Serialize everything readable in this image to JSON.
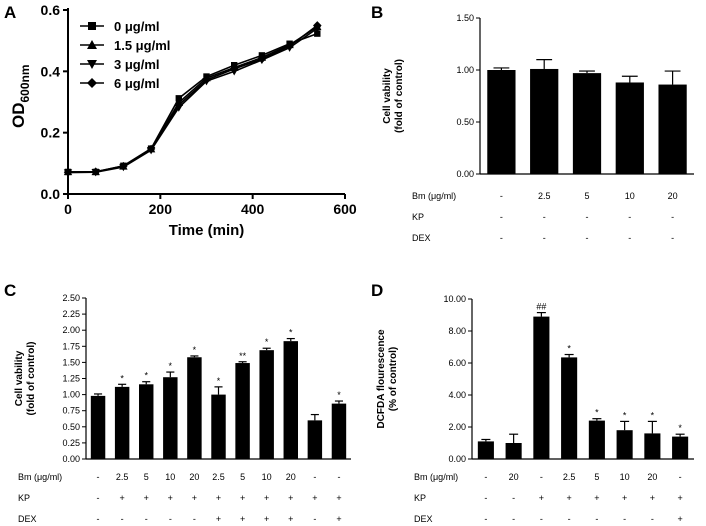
{
  "chart_data": [
    {
      "panel": "A",
      "type": "line",
      "ylabel_main": "OD",
      "ylabel_sub": "600nm",
      "xlabel": "Time (min)",
      "xlim": [
        0,
        600
      ],
      "ylim": [
        0,
        0.6
      ],
      "xticks": [
        0,
        200,
        400,
        600
      ],
      "yticks": [
        0.0,
        0.2,
        0.4,
        0.6
      ],
      "xtick_labels": [
        "0",
        "200",
        "400",
        "600"
      ],
      "ytick_labels": [
        "0.0",
        "0.2",
        "0.4",
        "0.6"
      ],
      "x": [
        0,
        60,
        120,
        180,
        240,
        300,
        360,
        420,
        480,
        540
      ],
      "series": [
        {
          "name": "0 μg/ml",
          "marker": "square",
          "values": [
            0.072,
            0.072,
            0.092,
            0.148,
            0.312,
            0.383,
            0.42,
            0.452,
            0.49,
            0.523
          ]
        },
        {
          "name": "1.5 μg/ml",
          "marker": "triangle-up",
          "values": [
            0.072,
            0.072,
            0.09,
            0.146,
            0.298,
            0.378,
            0.412,
            0.445,
            0.486,
            0.545
          ]
        },
        {
          "name": "3 μg/ml",
          "marker": "triangle-down",
          "values": [
            0.07,
            0.071,
            0.088,
            0.143,
            0.282,
            0.368,
            0.4,
            0.437,
            0.477,
            0.54
          ]
        },
        {
          "name": "6 μg/ml",
          "marker": "diamond",
          "values": [
            0.071,
            0.073,
            0.091,
            0.147,
            0.29,
            0.372,
            0.408,
            0.44,
            0.482,
            0.55
          ]
        }
      ]
    },
    {
      "panel": "B",
      "type": "bar",
      "ylabel": [
        "Cell vability",
        "(fold of control)"
      ],
      "ylim": [
        0,
        1.5
      ],
      "yticks": [
        0.0,
        0.5,
        1.0,
        1.5
      ],
      "ytick_labels": [
        "0.00",
        "0.50",
        "1.00",
        "1.50"
      ],
      "values": [
        1.0,
        1.01,
        0.97,
        0.88,
        0.86
      ],
      "errors": [
        0.02,
        0.09,
        0.02,
        0.06,
        0.13
      ],
      "significance": [
        "",
        "",
        "",
        "",
        ""
      ],
      "condition_rows": [
        {
          "label": "Bm (μg/ml)",
          "values": [
            "-",
            "2.5",
            "5",
            "10",
            "20"
          ]
        },
        {
          "label": "KP",
          "values": [
            "-",
            "-",
            "-",
            "-",
            "-"
          ]
        },
        {
          "label": "DEX",
          "values": [
            "-",
            "-",
            "-",
            "-",
            "-"
          ]
        }
      ]
    },
    {
      "panel": "C",
      "type": "bar",
      "ylabel": [
        "Cell vability",
        "(fold of control)"
      ],
      "ylim": [
        0,
        2.5
      ],
      "yticks": [
        0,
        0.25,
        0.5,
        0.75,
        1.0,
        1.25,
        1.5,
        1.75,
        2.0,
        2.25,
        2.5
      ],
      "ytick_labels": [
        "0.00",
        "0.25",
        "0.50",
        "0.75",
        "1.00",
        "1.25",
        "1.50",
        "1.75",
        "2.00",
        "2.25",
        "2.50"
      ],
      "values": [
        0.98,
        1.12,
        1.16,
        1.27,
        1.58,
        1.0,
        1.49,
        1.69,
        1.83,
        0.6,
        0.86
      ],
      "errors": [
        0.03,
        0.04,
        0.04,
        0.08,
        0.02,
        0.12,
        0.02,
        0.03,
        0.04,
        0.09,
        0.04
      ],
      "significance": [
        "",
        "*",
        "*",
        "*",
        "*",
        "*",
        "**",
        "*",
        "*",
        "",
        "*"
      ],
      "condition_rows": [
        {
          "label": "Bm (μg/ml)",
          "values": [
            "-",
            "2.5",
            "5",
            "10",
            "20",
            "2.5",
            "5",
            "10",
            "20",
            "-",
            "-"
          ]
        },
        {
          "label": "KP",
          "values": [
            "-",
            "+",
            "+",
            "+",
            "+",
            "+",
            "+",
            "+",
            "+",
            "+",
            "+"
          ]
        },
        {
          "label": "DEX",
          "values": [
            "-",
            "-",
            "-",
            "-",
            "-",
            "+",
            "+",
            "+",
            "+",
            "-",
            "+"
          ]
        }
      ]
    },
    {
      "panel": "D",
      "type": "bar",
      "ylabel": [
        "DCFDA flourescence",
        "(% of control)"
      ],
      "ylim": [
        0,
        10
      ],
      "yticks": [
        0,
        2,
        4,
        6,
        8,
        10
      ],
      "ytick_labels": [
        "0.00",
        "2.00",
        "4.00",
        "6.00",
        "8.00",
        "10.00"
      ],
      "values": [
        1.1,
        1.0,
        8.9,
        6.35,
        2.4,
        1.8,
        1.6,
        1.4
      ],
      "errors": [
        0.12,
        0.55,
        0.25,
        0.18,
        0.12,
        0.55,
        0.75,
        0.15
      ],
      "significance": [
        "",
        "",
        "##",
        "*",
        "*",
        "*",
        "*",
        "*"
      ],
      "condition_rows": [
        {
          "label": "Bm (μg/ml)",
          "values": [
            "-",
            "20",
            "-",
            "2.5",
            "5",
            "10",
            "20",
            "-"
          ]
        },
        {
          "label": "KP",
          "values": [
            "-",
            "-",
            "+",
            "+",
            "+",
            "+",
            "+",
            "+"
          ]
        },
        {
          "label": "DEX",
          "values": [
            "-",
            "-",
            "-",
            "-",
            "-",
            "-",
            "-",
            "+"
          ]
        }
      ]
    }
  ]
}
